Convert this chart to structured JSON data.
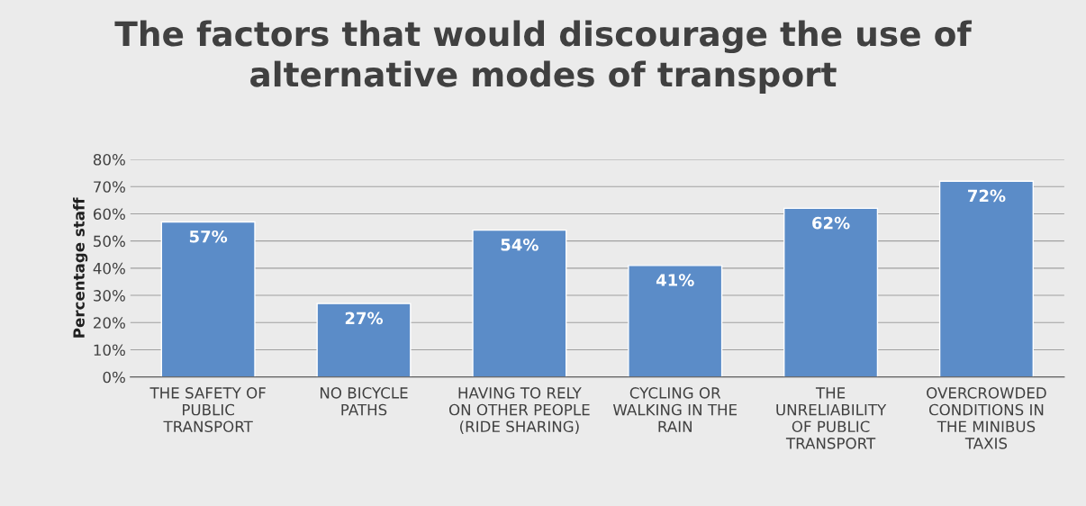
{
  "chart_data": {
    "type": "bar",
    "title": "The factors that would discourage the use of alternative modes of transport",
    "ylabel": "Percentage staff",
    "categories": [
      "THE SAFETY OF PUBLIC TRANSPORT",
      "NO BICYCLE PATHS",
      "HAVING TO RELY ON OTHER PEOPLE (RIDE SHARING)",
      "CYCLING OR WALKING IN THE RAIN",
      "THE UNRELIABILITY OF PUBLIC TRANSPORT",
      "OVERCROWDED CONDITIONS IN THE MINIBUS TAXIS"
    ],
    "values": [
      57,
      27,
      54,
      41,
      62,
      72
    ],
    "value_labels": [
      "57%",
      "27%",
      "54%",
      "41%",
      "62%",
      "72%"
    ],
    "color": "#5b8cc8",
    "ylim": [
      0,
      80
    ],
    "yticks": [
      {
        "value": 0,
        "label": "0%"
      },
      {
        "value": 10,
        "label": "10%"
      },
      {
        "value": 20,
        "label": "20%"
      },
      {
        "value": 30,
        "label": "30%"
      },
      {
        "value": 40,
        "label": "40%"
      },
      {
        "value": 50,
        "label": "50%"
      },
      {
        "value": 60,
        "label": "60%"
      },
      {
        "value": 70,
        "label": "70%"
      },
      {
        "value": 80,
        "label": "80%"
      }
    ],
    "grid": "y"
  }
}
